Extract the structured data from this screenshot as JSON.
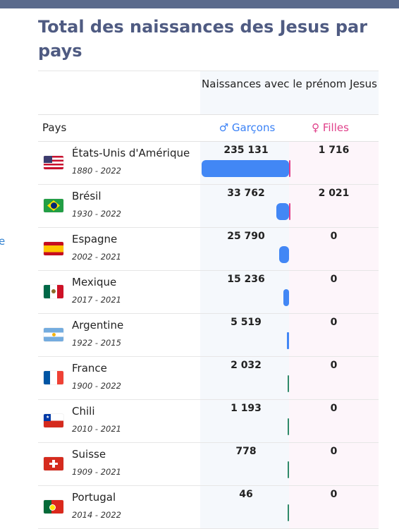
{
  "page": {
    "title": "Total des naissances des Jesus par pays",
    "side_letter": "e"
  },
  "table": {
    "group_header": "Naissances avec le prénom Jesus",
    "col_pays": "Pays",
    "col_boys": "♂ Garçons",
    "col_girls": "♀ Filles",
    "colors": {
      "boys": "#3b82f6",
      "girls": "#e0408a",
      "title": "#4f5b82"
    },
    "rows": [
      {
        "country": "États-Unis d'Amérique",
        "years": "1880 - 2022",
        "boys": "235 131",
        "girls": "1 716",
        "boys_value": 235131,
        "girls_value": 1716,
        "flag": "usa-flag-icon"
      },
      {
        "country": "Brésil",
        "years": "1930 - 2022",
        "boys": "33 762",
        "girls": "2 021",
        "boys_value": 33762,
        "girls_value": 2021,
        "flag": "brazil-flag-icon"
      },
      {
        "country": "Espagne",
        "years": "2002 - 2021",
        "boys": "25 790",
        "girls": "0",
        "boys_value": 25790,
        "girls_value": 0,
        "flag": "spain-flag-icon"
      },
      {
        "country": "Mexique",
        "years": "2017 - 2021",
        "boys": "15 236",
        "girls": "0",
        "boys_value": 15236,
        "girls_value": 0,
        "flag": "mexico-flag-icon"
      },
      {
        "country": "Argentine",
        "years": "1922 - 2015",
        "boys": "5 519",
        "girls": "0",
        "boys_value": 5519,
        "girls_value": 0,
        "flag": "argentina-flag-icon"
      },
      {
        "country": "France",
        "years": "1900 - 2022",
        "boys": "2 032",
        "girls": "0",
        "boys_value": 2032,
        "girls_value": 0,
        "flag": "france-flag-icon"
      },
      {
        "country": "Chili",
        "years": "2010 - 2021",
        "boys": "1 193",
        "girls": "0",
        "boys_value": 1193,
        "girls_value": 0,
        "flag": "chile-flag-icon"
      },
      {
        "country": "Suisse",
        "years": "1909 - 2021",
        "boys": "778",
        "girls": "0",
        "boys_value": 778,
        "girls_value": 0,
        "flag": "switzerland-flag-icon"
      },
      {
        "country": "Portugal",
        "years": "2014 - 2022",
        "boys": "46",
        "girls": "0",
        "boys_value": 46,
        "girls_value": 0,
        "flag": "portugal-flag-icon"
      }
    ]
  }
}
